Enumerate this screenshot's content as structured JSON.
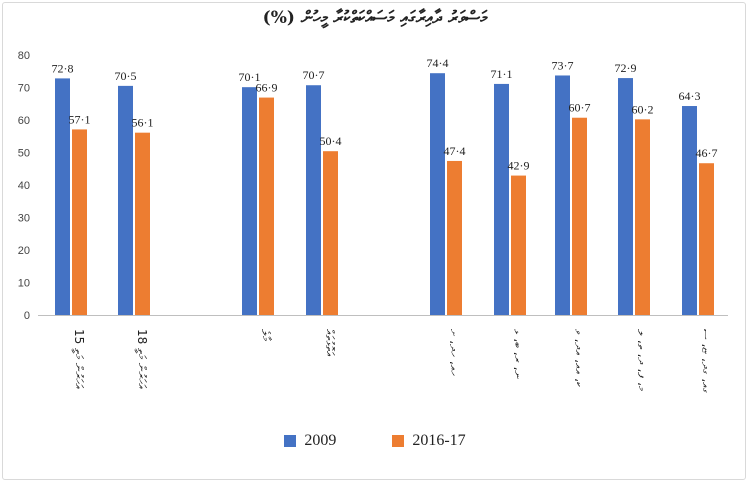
{
  "chart_data": {
    "type": "bar",
    "title": "މަސްވަރު ދާއިރާގައި މަސައްކަތްކުރާ މީހުން (%)",
    "categories": [
      "15 އަހަރުން މަތީ",
      "18 އަހަރުން މަތީ",
      "މާލެ",
      "އަތޮޅުތައް",
      "ހއ، ހދ، ށ",
      "ނ، ރ، ބ، ޅ",
      "ކ، އއ، އދ، ވ",
      "މ، ފ، ދ، ތ، ލ",
      "ގއ، ގދ، ޏ، ސ"
    ],
    "series": [
      {
        "name": "2009",
        "color": "#4472C4",
        "values": [
          72.8,
          70.5,
          70.1,
          70.7,
          74.4,
          71.1,
          73.7,
          72.9,
          64.3
        ]
      },
      {
        "name": "2016-17",
        "color": "#ED7D31",
        "values": [
          57.1,
          56.1,
          66.9,
          50.4,
          47.4,
          42.9,
          60.7,
          60.2,
          46.7
        ]
      }
    ],
    "data_labels": [
      [
        "72·8",
        "70·5",
        "70·1",
        "70·7",
        "74·4",
        "71·1",
        "73·7",
        "72·9",
        "64·3"
      ],
      [
        "57·1",
        "56·1",
        "66·9",
        "50·4",
        "47·4",
        "42·9",
        "60·7",
        "60·2",
        "46·7"
      ]
    ],
    "ylim": [
      0,
      80
    ],
    "yticks": [
      0,
      10,
      20,
      30,
      40,
      50,
      60,
      70,
      80
    ],
    "grid": false,
    "legend_position": "bottom"
  }
}
